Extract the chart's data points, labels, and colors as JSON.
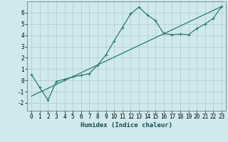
{
  "xlabel": "Humidex (Indice chaleur)",
  "background_color": "#cfe9ed",
  "grid_color": "#b0c8cc",
  "line_color": "#2a7a6a",
  "xlim": [
    -0.5,
    23.5
  ],
  "ylim": [
    -2.7,
    7.0
  ],
  "xticks": [
    0,
    1,
    2,
    3,
    4,
    5,
    6,
    7,
    8,
    9,
    10,
    11,
    12,
    13,
    14,
    15,
    16,
    17,
    18,
    19,
    20,
    21,
    22,
    23
  ],
  "yticks": [
    -2,
    -1,
    0,
    1,
    2,
    3,
    4,
    5,
    6
  ],
  "curve_x": [
    0,
    1,
    2,
    3,
    4,
    5,
    6,
    7,
    8,
    9,
    10,
    11,
    12,
    13,
    14,
    15,
    16,
    17,
    18,
    19,
    20,
    21,
    22,
    23
  ],
  "curve_y": [
    0.5,
    -0.65,
    -1.75,
    -0.1,
    0.1,
    0.3,
    0.45,
    0.6,
    1.35,
    2.25,
    3.5,
    4.7,
    5.9,
    6.5,
    5.8,
    5.3,
    4.15,
    4.05,
    4.1,
    4.05,
    4.6,
    5.0,
    5.5,
    6.55
  ],
  "line_x": [
    0,
    23
  ],
  "line_y": [
    -1.4,
    6.55
  ],
  "xlabel_fontsize": 6.5,
  "tick_fontsize": 5.5
}
